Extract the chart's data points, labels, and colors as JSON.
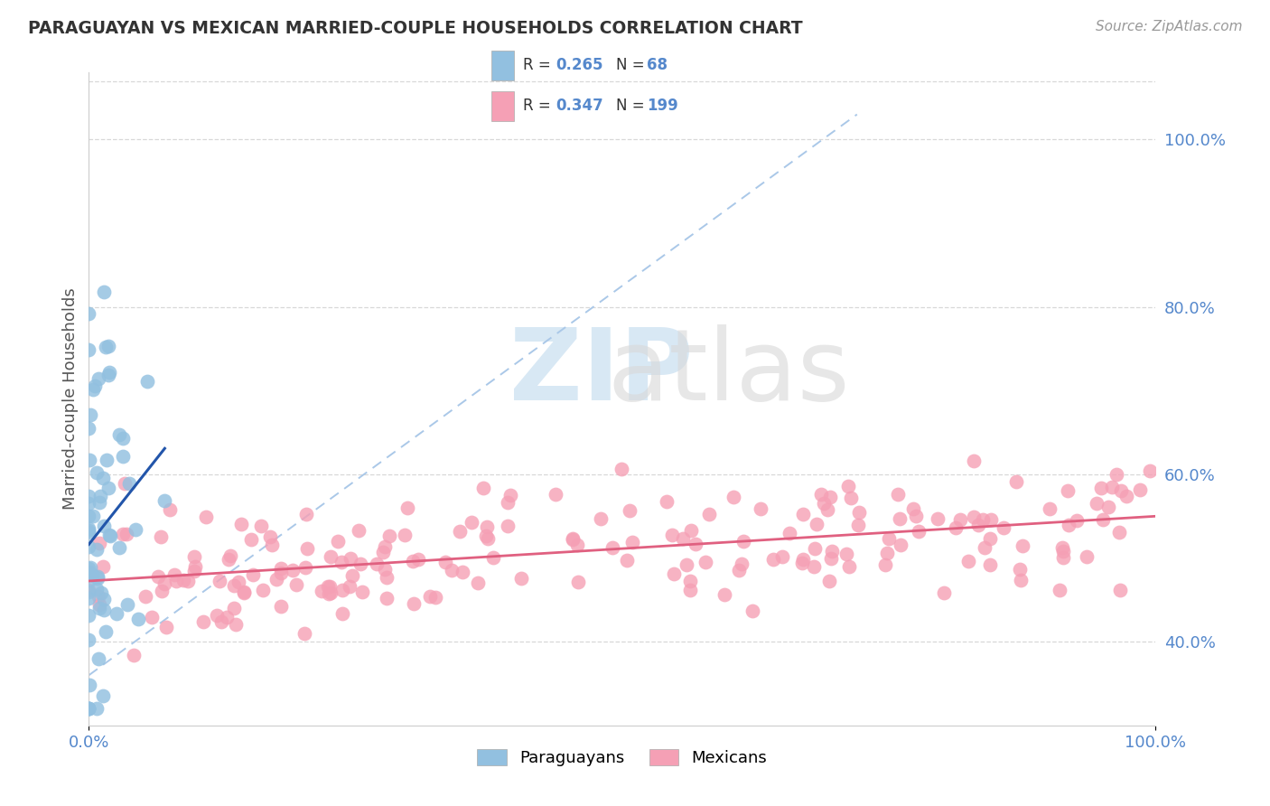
{
  "title": "PARAGUAYAN VS MEXICAN MARRIED-COUPLE HOUSEHOLDS CORRELATION CHART",
  "source": "Source: ZipAtlas.com",
  "ylabel": "Married-couple Households",
  "xlim": [
    0.0,
    1.0
  ],
  "ylim": [
    0.3,
    1.08
  ],
  "y_tick_positions": [
    0.4,
    0.6,
    0.8,
    1.0
  ],
  "y_tick_labels": [
    "40.0%",
    "60.0%",
    "80.0%",
    "100.0%"
  ],
  "x_tick_labels": [
    "0.0%",
    "100.0%"
  ],
  "paraguayan_R": 0.265,
  "paraguayan_N": 68,
  "mexican_R": 0.347,
  "mexican_N": 199,
  "paraguayan_color": "#92c0e0",
  "mexican_color": "#f5a0b5",
  "paraguayan_line_color": "#2255aa",
  "mexican_line_color": "#e06080",
  "diagonal_color": "#aac8e8",
  "tick_color": "#5588cc",
  "background_color": "#ffffff",
  "grid_color": "#d8d8d8",
  "watermark_zip_color": "#c8dff0",
  "watermark_atlas_color": "#d8d8d8",
  "legend_border_color": "#cccccc",
  "title_color": "#333333",
  "source_color": "#999999"
}
